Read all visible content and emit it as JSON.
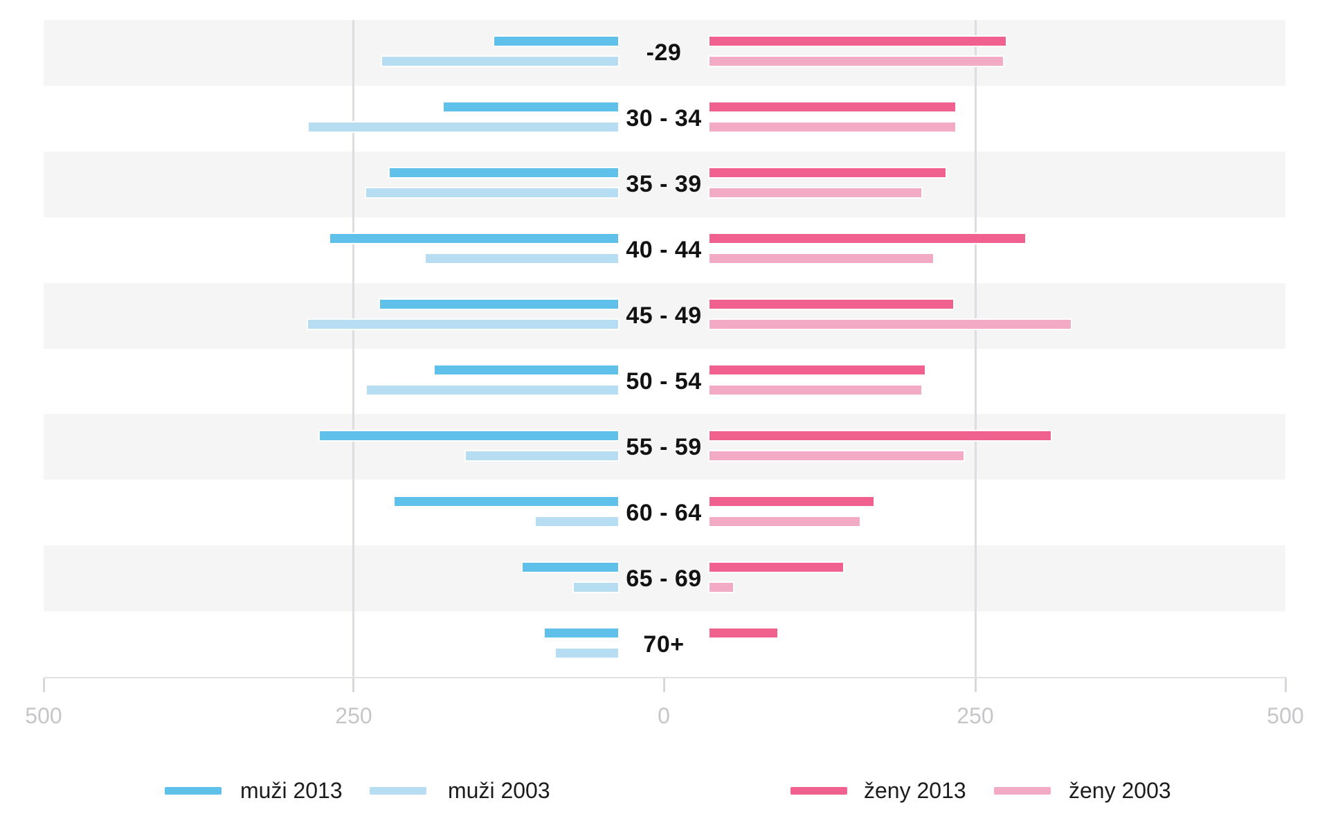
{
  "chart_data": {
    "type": "bar",
    "subtype": "population-pyramid-horizontal",
    "title": "",
    "categories": [
      "-29",
      "30 - 34",
      "35 - 39",
      "40 - 44",
      "45 - 49",
      "50 - 54",
      "55 - 59",
      "60 - 64",
      "65 - 69",
      "70+"
    ],
    "series": [
      {
        "name": "muži 2013",
        "side": "left",
        "shade": "dark",
        "color": "#5fc0ea",
        "values": [
          117,
          165,
          216,
          272,
          225,
          173,
          282,
          211,
          90,
          69
        ]
      },
      {
        "name": "muži 2003",
        "side": "left",
        "shade": "light",
        "color": "#b7ddf3",
        "values": [
          223,
          292,
          238,
          182,
          293,
          237,
          144,
          78,
          42,
          59
        ]
      },
      {
        "name": "ženy 2013",
        "side": "right",
        "shade": "dark",
        "color": "#f0618f",
        "values": [
          280,
          232,
          223,
          298,
          230,
          203,
          322,
          155,
          126,
          64
        ]
      },
      {
        "name": "ženy 2003",
        "side": "right",
        "shade": "light",
        "color": "#f3abc5",
        "values": [
          277,
          232,
          200,
          211,
          341,
          200,
          240,
          142,
          22,
          0
        ]
      }
    ],
    "axis_ticks": [
      "500",
      "250",
      "0",
      "250",
      "500"
    ],
    "xlim_each_side": [
      0,
      500
    ],
    "grid": "vertical gridlines at 250 on each side",
    "legend_position": "bottom",
    "row_banding": "alternating light-gray bands starting with first row"
  },
  "colors": {
    "band": "#f5f5f5",
    "gridline": "#dddde1",
    "axis_line": "#e2e2e2",
    "tick": "#d8d8dc",
    "tick_text": "#c6c6ca",
    "age_text": "#121212",
    "legend_text": "#1c1c1c"
  },
  "legend": {
    "items": [
      {
        "label": "muži 2013",
        "color": "#5fc0ea"
      },
      {
        "label": "muži 2003",
        "color": "#b7ddf3"
      },
      {
        "label": "ženy 2013",
        "color": "#f0618f"
      },
      {
        "label": "ženy 2003",
        "color": "#f3abc5"
      }
    ]
  }
}
